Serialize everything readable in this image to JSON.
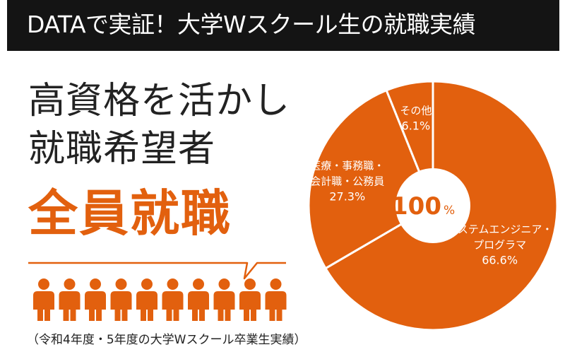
{
  "header": {
    "title": "DATAで実証！大学Wスクール生の就職実績"
  },
  "headline": {
    "line1": "高資格を活かし",
    "line2": "就職希望者",
    "line3": "全員就職"
  },
  "footnote": "（令和4年度・5年度の大学Wスクール卒業生実績）",
  "people_icon": {
    "name": "person-icon",
    "count": 10,
    "color": "#e2600e"
  },
  "colors": {
    "accent": "#e2600e",
    "header_bg": "#141414",
    "center_text": "#e2600e"
  },
  "chart_data": {
    "type": "pie",
    "title": "",
    "center_label": {
      "value": "100",
      "unit": "%"
    },
    "slices": [
      {
        "label_lines": [
          "システムエンジニア・",
          "プログラマ"
        ],
        "value": 66.6,
        "value_label": "66.6%"
      },
      {
        "label_lines": [
          "医療・事務職・",
          "会計職・公務員"
        ],
        "value": 27.3,
        "value_label": "27.3%"
      },
      {
        "label_lines": [
          "その他"
        ],
        "value": 6.1,
        "value_label": "6.1%"
      }
    ]
  }
}
